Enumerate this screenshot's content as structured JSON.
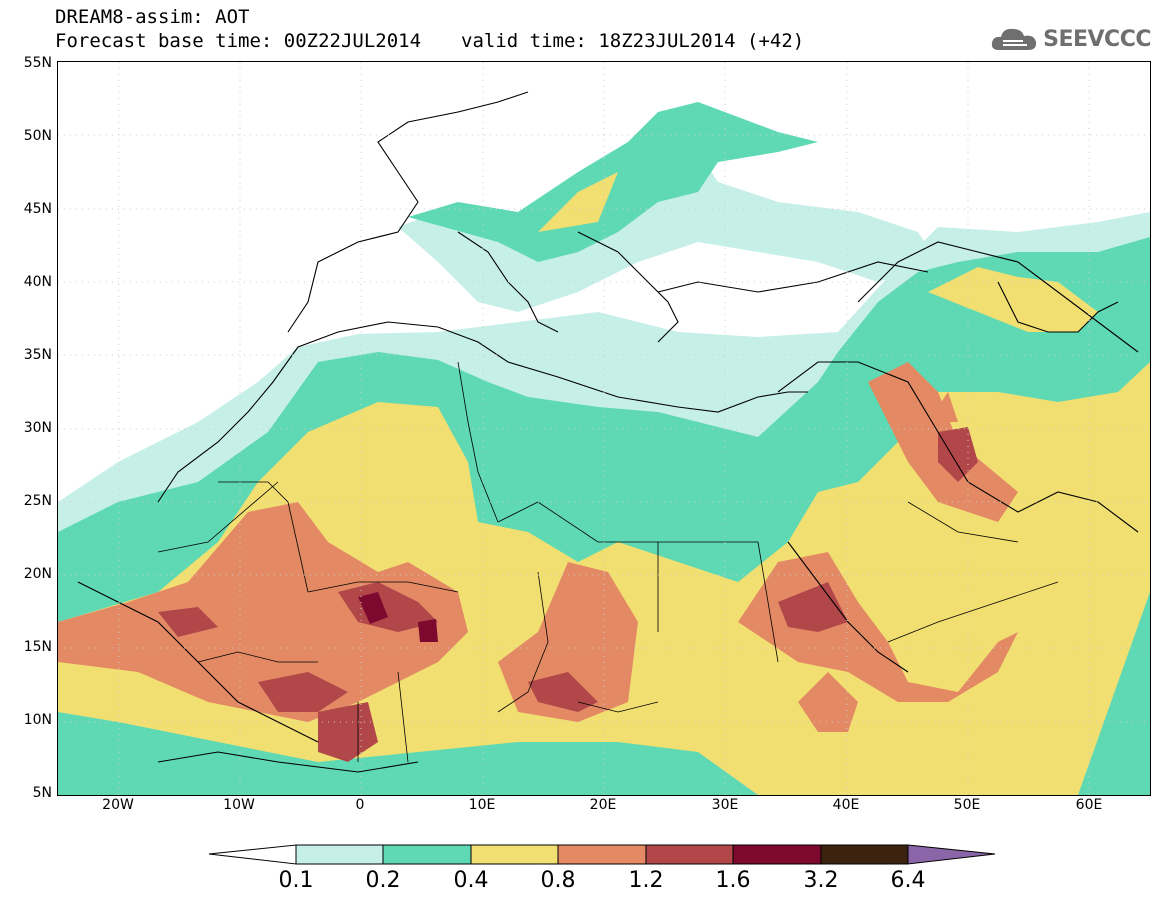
{
  "header": {
    "line1": "DREAM8-assim: AOT",
    "base": "Forecast base time: 00Z22JUL2014",
    "valid": "valid time: 18Z23JUL2014 (+42)"
  },
  "logo": {
    "text": "SEEVCCC",
    "icon": "cloud-icon"
  },
  "map": {
    "lon_range": [
      -25,
      65
    ],
    "lat_range": [
      5,
      55
    ],
    "lat_labels": [
      "55N",
      "50N",
      "45N",
      "40N",
      "35N",
      "30N",
      "25N",
      "20N",
      "15N",
      "10N",
      "5N"
    ],
    "lon_labels": [
      "20W",
      "10W",
      "0",
      "10E",
      "20E",
      "30E",
      "40E",
      "50E",
      "60E"
    ]
  },
  "colorbar": {
    "labels": [
      "0.1",
      "0.2",
      "0.4",
      "0.8",
      "1.2",
      "1.6",
      "3.2",
      "6.4"
    ],
    "colors": {
      "0.1-0.2": "#c6efe8",
      "0.2-0.4": "#5ed9b4",
      "0.4-0.8": "#f2df72",
      "0.8-1.2": "#e38a64",
      "1.2-1.6": "#b2474a",
      "1.6-3.2": "#7d0a2e",
      "3.2-6.4": "#3b2310",
      ">6.4": "#8a65a8",
      "<0.1": "#ffffff"
    }
  }
}
